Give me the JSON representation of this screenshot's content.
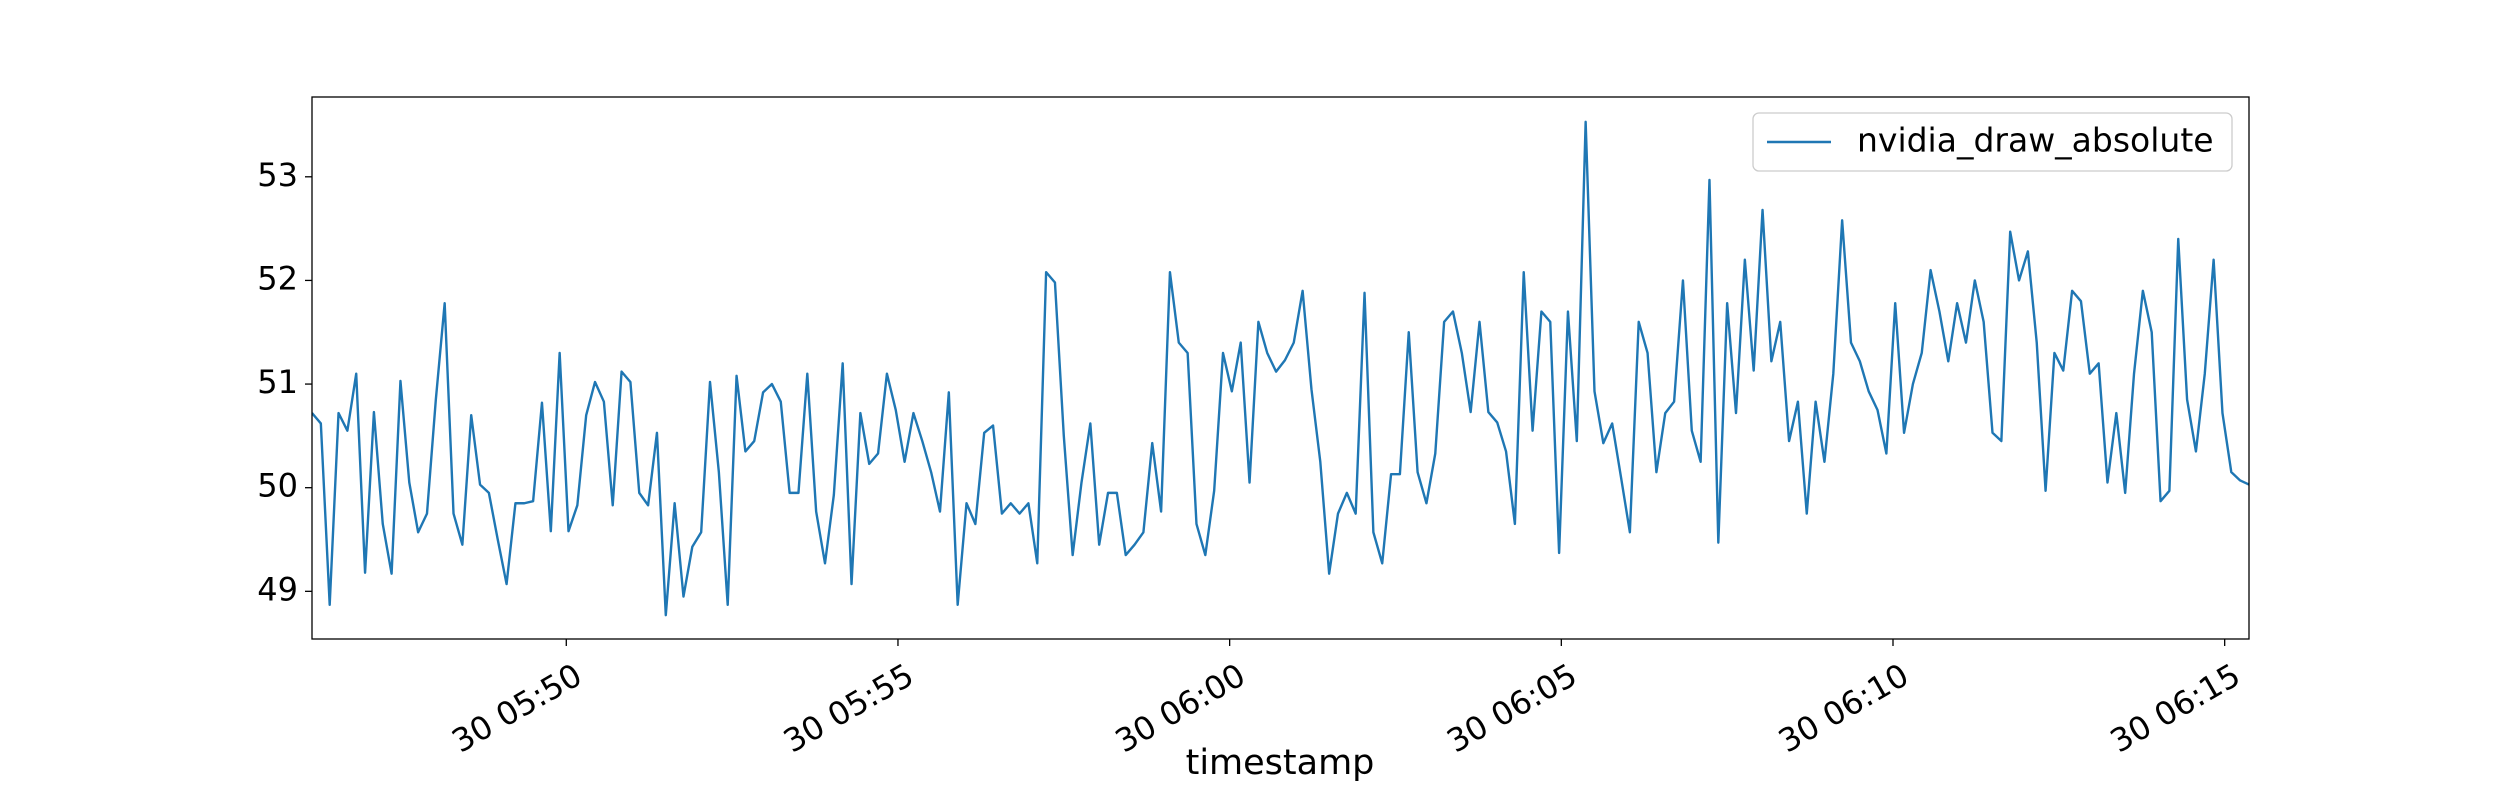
{
  "chart_data": {
    "type": "line",
    "x_label": "timestamp",
    "x": [
      20770,
      20778,
      20786,
      20794,
      20802,
      20810,
      20818,
      20826,
      20834,
      20842,
      20850,
      20858,
      20866,
      20874,
      20882,
      20890,
      20898,
      20906,
      20914,
      20922,
      20930,
      20938,
      20946,
      20954,
      20962,
      20970,
      20978,
      20986,
      20994,
      21002,
      21010,
      21018,
      21026,
      21034,
      21042,
      21050,
      21058,
      21066,
      21074,
      21082,
      21090,
      21098,
      21106,
      21114,
      21122,
      21130,
      21138,
      21146,
      21154,
      21162,
      21170,
      21178,
      21186,
      21194,
      21202,
      21210,
      21218,
      21226,
      21234,
      21242,
      21250,
      21258,
      21266,
      21274,
      21282,
      21290,
      21298,
      21306,
      21314,
      21322,
      21330,
      21338,
      21346,
      21354,
      21362,
      21370,
      21378,
      21386,
      21394,
      21402,
      21410,
      21418,
      21426,
      21434,
      21442,
      21450,
      21458,
      21466,
      21474,
      21482,
      21490,
      21498,
      21506,
      21514,
      21522,
      21530,
      21538,
      21546,
      21554,
      21562,
      21570,
      21578,
      21586,
      21594,
      21602,
      21610,
      21618,
      21626,
      21634,
      21642,
      21650,
      21658,
      21666,
      21674,
      21682,
      21690,
      21698,
      21706,
      21714,
      21722,
      21730,
      21738,
      21746,
      21754,
      21762,
      21770,
      21778,
      21786,
      21794,
      21802,
      21810,
      21818,
      21826,
      21834,
      21842,
      21850,
      21858,
      21866,
      21874,
      21882,
      21890,
      21898,
      21906,
      21914,
      21922,
      21930,
      21938,
      21946,
      21954,
      21962,
      21970,
      21978,
      21986,
      21994,
      22002,
      22010,
      22018,
      22026,
      22034,
      22042,
      22050,
      22058,
      22066,
      22074,
      22082,
      22090,
      22098,
      22106,
      22114,
      22122,
      22130,
      22138,
      22146,
      22154,
      22162,
      22170,
      22178,
      22186,
      22194,
      22202,
      22210,
      22218,
      22226,
      22234,
      22242,
      22250,
      22258,
      22266,
      22274,
      22282,
      22290,
      22298,
      22306,
      22314,
      22322,
      22330,
      22338,
      22346,
      22354,
      22362,
      22370,
      22378,
      22386,
      22394,
      22402,
      22410,
      22418,
      22426,
      22434,
      22442,
      22450,
      22458,
      22466,
      22474,
      22482,
      22490,
      22498,
      22506,
      22514,
      22522
    ],
    "series": [
      {
        "name": "nvidia_draw_absolute",
        "color": "#1f77b4",
        "values": [
          50.72,
          50.62,
          48.87,
          50.72,
          50.55,
          51.1,
          49.18,
          50.73,
          49.65,
          49.17,
          51.03,
          50.05,
          49.57,
          49.75,
          50.85,
          51.78,
          49.75,
          49.45,
          50.7,
          50.03,
          49.95,
          49.5,
          49.07,
          49.85,
          49.85,
          49.87,
          50.82,
          49.58,
          51.3,
          49.58,
          49.83,
          50.7,
          51.02,
          50.83,
          49.83,
          51.12,
          51.02,
          49.95,
          49.83,
          50.53,
          48.77,
          49.85,
          48.95,
          49.43,
          49.57,
          51.02,
          50.15,
          48.87,
          51.08,
          50.35,
          50.45,
          50.92,
          51.0,
          50.83,
          49.95,
          49.95,
          51.1,
          49.77,
          49.27,
          49.93,
          51.2,
          49.07,
          50.72,
          50.23,
          50.33,
          51.1,
          50.75,
          50.25,
          50.72,
          50.45,
          50.15,
          49.77,
          50.92,
          48.87,
          49.85,
          49.65,
          50.53,
          50.6,
          49.75,
          49.85,
          49.75,
          49.85,
          49.27,
          52.08,
          51.98,
          50.5,
          49.35,
          50.05,
          50.62,
          49.45,
          49.95,
          49.95,
          49.35,
          49.45,
          49.57,
          50.43,
          49.77,
          52.08,
          51.4,
          51.3,
          49.65,
          49.35,
          49.97,
          51.3,
          50.93,
          51.4,
          50.05,
          51.6,
          51.3,
          51.12,
          51.23,
          51.4,
          51.9,
          50.95,
          50.25,
          49.17,
          49.75,
          49.95,
          49.75,
          51.88,
          49.57,
          49.27,
          50.13,
          50.13,
          51.5,
          50.15,
          49.85,
          50.33,
          51.6,
          51.7,
          51.3,
          50.73,
          51.6,
          50.73,
          50.63,
          50.35,
          49.65,
          52.08,
          50.55,
          51.7,
          51.6,
          49.37,
          51.7,
          50.45,
          53.53,
          50.93,
          50.43,
          50.62,
          50.1,
          49.57,
          51.6,
          51.3,
          50.15,
          50.72,
          50.83,
          52.0,
          50.55,
          50.25,
          52.97,
          49.47,
          51.78,
          50.72,
          52.2,
          51.13,
          52.68,
          51.22,
          51.6,
          50.45,
          50.83,
          49.75,
          50.83,
          50.25,
          51.1,
          52.58,
          51.4,
          51.22,
          50.93,
          50.75,
          50.33,
          51.78,
          50.53,
          51.0,
          51.3,
          52.1,
          51.7,
          51.22,
          51.78,
          51.4,
          52.0,
          51.6,
          50.53,
          50.45,
          52.47,
          52.0,
          52.28,
          51.4,
          49.97,
          51.3,
          51.13,
          51.9,
          51.8,
          51.1,
          51.2,
          50.05,
          50.72,
          49.95,
          51.1,
          51.9,
          51.5,
          49.87,
          49.97,
          52.4,
          50.85,
          50.35,
          51.1,
          52.2,
          50.72,
          50.15,
          50.07,
          50.03
        ]
      }
    ],
    "xlim": [
      20770,
      22522
    ],
    "xticks": [
      {
        "value": 21000,
        "label": "30 05:50"
      },
      {
        "value": 21300,
        "label": "30 05:55"
      },
      {
        "value": 21600,
        "label": "30 06:00"
      },
      {
        "value": 21900,
        "label": "30 06:05"
      },
      {
        "value": 22200,
        "label": "30 06:10"
      },
      {
        "value": 22500,
        "label": "30 06:15"
      }
    ],
    "ylim": [
      48.54,
      53.77
    ],
    "yticks": [
      49,
      50,
      51,
      52,
      53
    ],
    "grid": false,
    "legend": "upper right"
  }
}
